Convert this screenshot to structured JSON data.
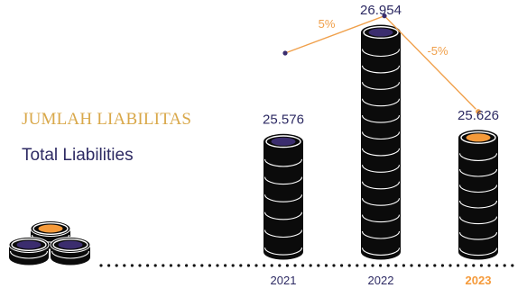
{
  "heading": {
    "id_label": "JUMLAH LIABILITAS",
    "en_label": "Total Liabilities"
  },
  "colors": {
    "coin_body": "#0b0b0b",
    "ring_line": "#ffffff",
    "inner_past": "#3b2d6e",
    "inner_current": "#f59a3a",
    "trend_line": "#f0a04b",
    "trend_dot_past": "#3b2d6e",
    "value_text": "#2d2a63",
    "pct_text": "#f0a04b",
    "year_text": "#2d2a63",
    "year_highlight": "#f59a3a",
    "dotted_axis": "#111111"
  },
  "chart_data": {
    "type": "bar",
    "categories": [
      "2021",
      "2022",
      "2023"
    ],
    "values": [
      25.576,
      26.954,
      25.626
    ],
    "value_labels": [
      "25.576",
      "26.954",
      "25.626"
    ],
    "highlight_category": "2023",
    "trend": {
      "values": [
        25.576,
        26.954,
        25.626
      ],
      "growth_labels": [
        "5%",
        "-5%"
      ]
    }
  }
}
